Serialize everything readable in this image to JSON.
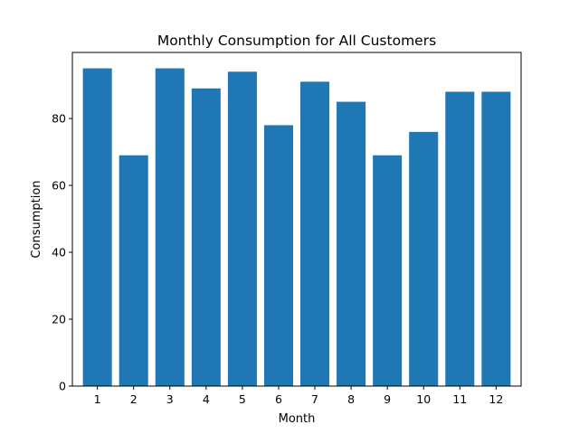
{
  "chart_data": {
    "type": "bar",
    "title": "Monthly Consumption for All Customers",
    "xlabel": "Month",
    "ylabel": "Consumption",
    "categories": [
      "1",
      "2",
      "3",
      "4",
      "5",
      "6",
      "7",
      "8",
      "9",
      "10",
      "11",
      "12"
    ],
    "values": [
      95,
      69,
      95,
      89,
      94,
      78,
      91,
      85,
      69,
      76,
      88,
      88
    ],
    "ylim": [
      0,
      99.75
    ],
    "yticks": [
      0,
      20,
      40,
      60,
      80
    ],
    "bar_color": "#1f77b4",
    "grid": false,
    "legend": "none"
  }
}
